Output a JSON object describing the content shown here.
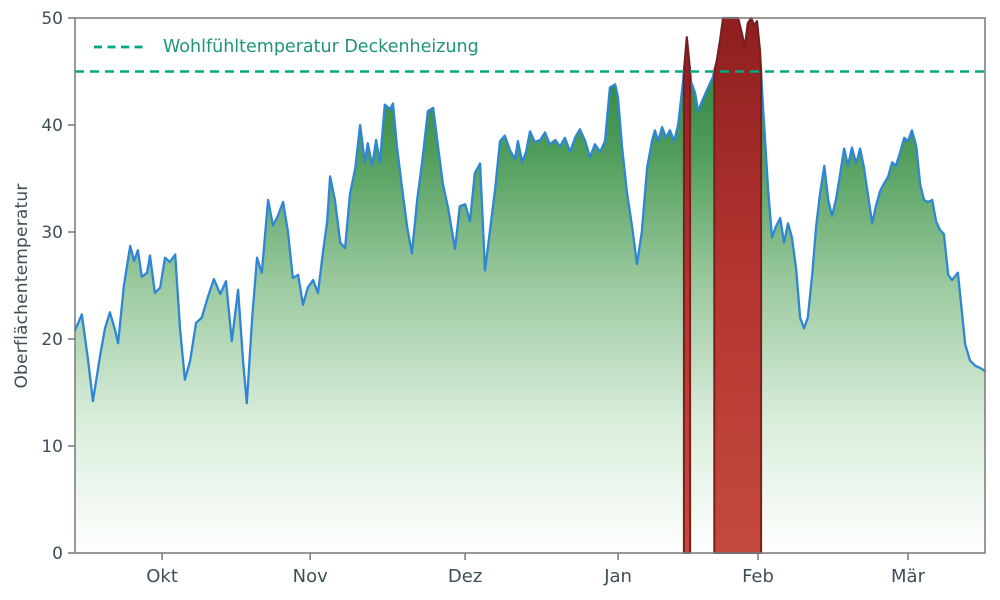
{
  "chart_data": {
    "type": "area",
    "title": "",
    "xlabel": "",
    "ylabel": "Oberflächentemperatur",
    "ylim": [
      0,
      50
    ],
    "xlim_days": [
      0,
      188
    ],
    "yticks": [
      0,
      10,
      20,
      30,
      40,
      50
    ],
    "xticks": [
      {
        "label": "Okt",
        "day": 18
      },
      {
        "label": "Nov",
        "day": 48.6
      },
      {
        "label": "Dez",
        "day": 80.6
      },
      {
        "label": "Jan",
        "day": 112.2
      },
      {
        "label": "Feb",
        "day": 141.1
      },
      {
        "label": "Mär",
        "day": 172.1
      }
    ],
    "grid": false,
    "legend_position": "upper left",
    "threshold": {
      "value": 45,
      "label": "Wohlfühltemperatur Deckenheizung",
      "style": "dashed",
      "color": "#00a87e",
      "label_color": "#1f9578"
    },
    "overheat": {
      "condition": "value > 45",
      "gradient": [
        "#8e1f1f",
        "#b53531",
        "#c24a3c"
      ],
      "edge_color": "#7e1c1c"
    },
    "area_gradient": [
      "#1e7b33",
      "#4f9d5a",
      "#9ccaa0",
      "#d9eddb",
      "#fefffe"
    ],
    "series": [
      {
        "name": "Oberflächentemperatur",
        "line_color": "#2e86d5",
        "points": [
          [
            0,
            20.8
          ],
          [
            1.4,
            22.3
          ],
          [
            2.7,
            18
          ],
          [
            3.7,
            14.2
          ],
          [
            5.2,
            18.5
          ],
          [
            6.2,
            21
          ],
          [
            7.2,
            22.5
          ],
          [
            8.3,
            20.8
          ],
          [
            8.9,
            19.6
          ],
          [
            10.1,
            25
          ],
          [
            11.4,
            28.7
          ],
          [
            12.2,
            27.3
          ],
          [
            13,
            28.3
          ],
          [
            13.8,
            25.8
          ],
          [
            14.9,
            26.2
          ],
          [
            15.5,
            27.8
          ],
          [
            16.5,
            24.3
          ],
          [
            17.6,
            24.8
          ],
          [
            18.6,
            27.6
          ],
          [
            19.6,
            27.2
          ],
          [
            20.7,
            27.9
          ],
          [
            21.7,
            21
          ],
          [
            22.7,
            16.2
          ],
          [
            23.8,
            18
          ],
          [
            25,
            21.5
          ],
          [
            26.2,
            22
          ],
          [
            27.5,
            24
          ],
          [
            28.7,
            25.6
          ],
          [
            30,
            24.2
          ],
          [
            31.2,
            25.4
          ],
          [
            32.4,
            19.8
          ],
          [
            33.7,
            24.6
          ],
          [
            34.7,
            18
          ],
          [
            35.5,
            14
          ],
          [
            36.6,
            22
          ],
          [
            37.6,
            27.6
          ],
          [
            38.6,
            26.2
          ],
          [
            39.9,
            33
          ],
          [
            40.9,
            30.6
          ],
          [
            41.9,
            31.5
          ],
          [
            43,
            32.8
          ],
          [
            44,
            30
          ],
          [
            45,
            25.7
          ],
          [
            46.1,
            26
          ],
          [
            47.1,
            23.2
          ],
          [
            48.1,
            24.8
          ],
          [
            49.2,
            25.5
          ],
          [
            50.2,
            24.3
          ],
          [
            51.2,
            28
          ],
          [
            52.1,
            31
          ],
          [
            52.7,
            35.2
          ],
          [
            53.7,
            33
          ],
          [
            54.8,
            29
          ],
          [
            55.8,
            28.5
          ],
          [
            56.8,
            33.5
          ],
          [
            57.9,
            36
          ],
          [
            58.9,
            40
          ],
          [
            59.9,
            36.5
          ],
          [
            60.5,
            38.3
          ],
          [
            61.4,
            36.2
          ],
          [
            62.2,
            38.6
          ],
          [
            63,
            36.5
          ],
          [
            64,
            41.9
          ],
          [
            65.1,
            41.5
          ],
          [
            65.7,
            42
          ],
          [
            66.5,
            38
          ],
          [
            67.6,
            34
          ],
          [
            68.6,
            30.5
          ],
          [
            69.6,
            28
          ],
          [
            70.7,
            33
          ],
          [
            71.7,
            36.5
          ],
          [
            72.9,
            41.3
          ],
          [
            74,
            41.6
          ],
          [
            75,
            38
          ],
          [
            76,
            34.5
          ],
          [
            77.1,
            32.2
          ],
          [
            78.5,
            28.4
          ],
          [
            79.5,
            32.4
          ],
          [
            80.6,
            32.6
          ],
          [
            81.6,
            31
          ],
          [
            82.6,
            35.5
          ],
          [
            83.7,
            36.4
          ],
          [
            84.7,
            26.4
          ],
          [
            85.7,
            30
          ],
          [
            86.8,
            34
          ],
          [
            87.8,
            38.5
          ],
          [
            88.8,
            39
          ],
          [
            89.9,
            37.6
          ],
          [
            90.9,
            36.8
          ],
          [
            91.5,
            38.5
          ],
          [
            92.4,
            36.5
          ],
          [
            93.2,
            37.5
          ],
          [
            94,
            39.4
          ],
          [
            95,
            38.4
          ],
          [
            96.1,
            38.6
          ],
          [
            97.1,
            39.3
          ],
          [
            98.1,
            38.2
          ],
          [
            99.2,
            38.6
          ],
          [
            100.2,
            38
          ],
          [
            101.2,
            38.8
          ],
          [
            102.3,
            37.5
          ],
          [
            103.3,
            38.8
          ],
          [
            104.3,
            39.6
          ],
          [
            105.4,
            38.5
          ],
          [
            106.4,
            37
          ],
          [
            107.4,
            38.2
          ],
          [
            108.5,
            37.5
          ],
          [
            109.5,
            38.5
          ],
          [
            110.5,
            43.5
          ],
          [
            111.6,
            43.8
          ],
          [
            112.2,
            42.5
          ],
          [
            113,
            38
          ],
          [
            114,
            33.8
          ],
          [
            115.1,
            30.5
          ],
          [
            116.1,
            27
          ],
          [
            117.1,
            30
          ],
          [
            118.2,
            36
          ],
          [
            119.2,
            38.5
          ],
          [
            119.8,
            39.5
          ],
          [
            120.5,
            38.5
          ],
          [
            121.3,
            39.8
          ],
          [
            122.1,
            38.8
          ],
          [
            122.9,
            39.5
          ],
          [
            123.8,
            38.5
          ],
          [
            124.6,
            40
          ],
          [
            125.6,
            44
          ],
          [
            126.4,
            48.2
          ],
          [
            127.3,
            44
          ],
          [
            128.1,
            43
          ],
          [
            128.7,
            41.3
          ],
          [
            129.8,
            42.5
          ],
          [
            130.8,
            43.5
          ],
          [
            131.8,
            44.5
          ],
          [
            132.6,
            46
          ],
          [
            133.3,
            48
          ],
          [
            133.9,
            50
          ],
          [
            134.7,
            50
          ],
          [
            135.5,
            50
          ],
          [
            136.4,
            50
          ],
          [
            137,
            50
          ],
          [
            137.8,
            48.5
          ],
          [
            138.4,
            47.3
          ],
          [
            139,
            49.5
          ],
          [
            139.7,
            50
          ],
          [
            140.3,
            49.3
          ],
          [
            140.9,
            49.7
          ],
          [
            141.5,
            47
          ],
          [
            142.1,
            42
          ],
          [
            143.2,
            34
          ],
          [
            144,
            29.5
          ],
          [
            144.8,
            30.5
          ],
          [
            145.7,
            31.3
          ],
          [
            146.5,
            29
          ],
          [
            147.3,
            30.8
          ],
          [
            148.1,
            29.5
          ],
          [
            149,
            26.5
          ],
          [
            149.8,
            22
          ],
          [
            150.6,
            21
          ],
          [
            151.4,
            22
          ],
          [
            152.3,
            26
          ],
          [
            153.1,
            30.5
          ],
          [
            153.9,
            33.5
          ],
          [
            154.8,
            36.2
          ],
          [
            155.6,
            33
          ],
          [
            156.4,
            31.5
          ],
          [
            157.2,
            33
          ],
          [
            158.1,
            35.5
          ],
          [
            158.9,
            37.8
          ],
          [
            159.7,
            36.2
          ],
          [
            160.5,
            37.9
          ],
          [
            161.4,
            36.4
          ],
          [
            162.2,
            37.8
          ],
          [
            163,
            36
          ],
          [
            163.8,
            33.5
          ],
          [
            164.7,
            30.8
          ],
          [
            165.5,
            32.5
          ],
          [
            166.3,
            33.8
          ],
          [
            167.1,
            34.5
          ],
          [
            168,
            35.2
          ],
          [
            168.8,
            36.5
          ],
          [
            169.6,
            36.2
          ],
          [
            170.5,
            37.5
          ],
          [
            171.3,
            38.8
          ],
          [
            172.1,
            38.5
          ],
          [
            172.9,
            39.5
          ],
          [
            173.8,
            38
          ],
          [
            174.6,
            34.5
          ],
          [
            175.4,
            33
          ],
          [
            176.2,
            32.8
          ],
          [
            177.1,
            33
          ],
          [
            177.9,
            31
          ],
          [
            178.7,
            30.2
          ],
          [
            179.5,
            29.8
          ],
          [
            180.4,
            26
          ],
          [
            181.2,
            25.5
          ],
          [
            182.4,
            26.2
          ],
          [
            183.9,
            19.5
          ],
          [
            184.9,
            18
          ],
          [
            186,
            17.5
          ],
          [
            187,
            17.3
          ],
          [
            188,
            17
          ]
        ]
      }
    ]
  },
  "axes": {
    "frame_color": "#7f7f7f",
    "label_color": "#3d4f55"
  }
}
